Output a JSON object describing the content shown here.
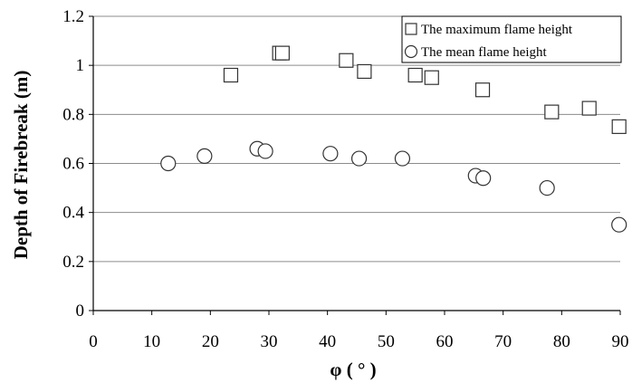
{
  "chart_data": {
    "type": "scatter",
    "title": "",
    "xlabel": "φ ( ° )",
    "ylabel": "Depth of Firebreak (m)",
    "xlim": [
      0,
      90
    ],
    "ylim": [
      0,
      1.2
    ],
    "x_ticks": [
      0,
      10,
      20,
      30,
      40,
      50,
      60,
      70,
      80,
      90
    ],
    "y_ticks": [
      0,
      0.2,
      0.4,
      0.6,
      0.8,
      1,
      1.2
    ],
    "x_tick_labels": [
      "0",
      "10",
      "20",
      "30",
      "40",
      "50",
      "60",
      "70",
      "80",
      "90"
    ],
    "y_tick_labels": [
      "0",
      "0.2",
      "0.4",
      "0.6",
      "0.8",
      "1",
      "1.2"
    ],
    "grid": "horizontal",
    "legend_position": "top-right",
    "series": [
      {
        "name": "The maximum flame height",
        "marker": "square",
        "points": [
          {
            "x": 23.5,
            "y": 0.96
          },
          {
            "x": 31.8,
            "y": 1.05
          },
          {
            "x": 32.3,
            "y": 1.05
          },
          {
            "x": 43.2,
            "y": 1.02
          },
          {
            "x": 46.3,
            "y": 0.975
          },
          {
            "x": 55.0,
            "y": 0.96
          },
          {
            "x": 57.8,
            "y": 0.95
          },
          {
            "x": 66.5,
            "y": 0.9
          },
          {
            "x": 78.3,
            "y": 0.81
          },
          {
            "x": 84.7,
            "y": 0.825
          },
          {
            "x": 89.8,
            "y": 0.75
          }
        ]
      },
      {
        "name": "The mean flame height",
        "marker": "circle",
        "points": [
          {
            "x": 12.8,
            "y": 0.6
          },
          {
            "x": 19.0,
            "y": 0.63
          },
          {
            "x": 28.0,
            "y": 0.66
          },
          {
            "x": 29.4,
            "y": 0.65
          },
          {
            "x": 40.5,
            "y": 0.64
          },
          {
            "x": 45.4,
            "y": 0.62
          },
          {
            "x": 52.8,
            "y": 0.62
          },
          {
            "x": 65.3,
            "y": 0.55
          },
          {
            "x": 66.6,
            "y": 0.54
          },
          {
            "x": 77.5,
            "y": 0.5
          },
          {
            "x": 89.8,
            "y": 0.35
          }
        ]
      }
    ]
  }
}
